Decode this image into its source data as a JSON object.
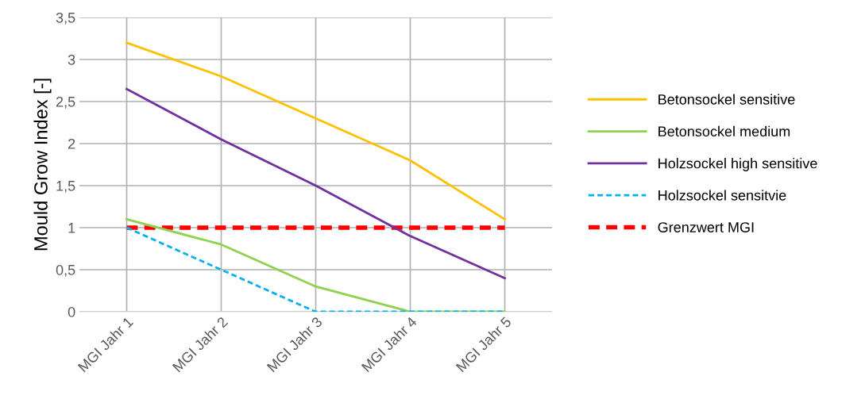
{
  "chart_data": {
    "type": "line",
    "ylabel": "Mould Grow Index [-]",
    "categories": [
      "MGI Jahr 1",
      "MGI Jahr 2",
      "MGI Jahr 3",
      "MGI Jahr 4",
      "MGI Jahr 5"
    ],
    "series": [
      {
        "name": "Betonsockel sensitive",
        "color": "#ffc000",
        "values": [
          3.2,
          2.8,
          2.3,
          1.8,
          1.1
        ]
      },
      {
        "name": "Betonsockel medium",
        "color": "#92d050",
        "values": [
          1.1,
          0.8,
          0.3,
          0,
          0
        ]
      },
      {
        "name": "Holzsockel high sensitive",
        "color": "#7030a0",
        "values": [
          2.65,
          2.05,
          1.5,
          0.9,
          0.4
        ]
      },
      {
        "name": "Holzsockel sensitvie",
        "color": "#00b0f0",
        "values": [
          1.0,
          0.5,
          0,
          0,
          0
        ],
        "line_style": "dashed"
      },
      {
        "name": "Grenzwert MGI",
        "color": "#ff0000",
        "values": [
          1,
          1,
          1,
          1,
          1
        ],
        "line_style": "dashed"
      }
    ],
    "ylim": [
      0,
      3.5
    ],
    "yticks": [
      0,
      {
        "value": 0.5,
        "label": "0,5"
      },
      1,
      {
        "value": 1.5,
        "label": "1,5"
      },
      2,
      {
        "value": 2.5,
        "label": "2,5"
      },
      3,
      {
        "value": 3.5,
        "label": "3,5"
      }
    ],
    "grid": true,
    "legend": "right",
    "marker": "none"
  }
}
